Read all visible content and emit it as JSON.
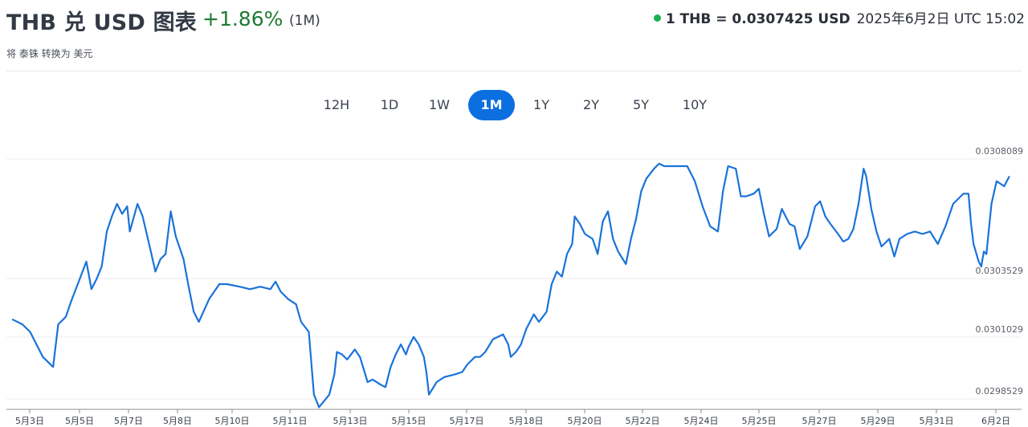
{
  "header": {
    "title": "THB 兑 USD 图表",
    "change": "+1.86%",
    "period": "(1M)",
    "rate": "1 THB = 0.0307425 USD",
    "timestamp": "2025年6月2日 UTC 15:02",
    "subtitle": "将 泰铢 转换为 美元"
  },
  "periods": [
    "12H",
    "1D",
    "1W",
    "1M",
    "1Y",
    "2Y",
    "5Y",
    "10Y"
  ],
  "active_period": "1M",
  "colors": {
    "line": "#1a73d9",
    "active": "#0c6fe0",
    "up": "#1f7a34",
    "live": "#17b152"
  },
  "chart_data": {
    "type": "line",
    "x_tick_labels": [
      "5月3日",
      "5月5日",
      "5月7日",
      "5月8日",
      "5月10日",
      "5月11日",
      "5月13日",
      "5月15日",
      "5月17日",
      "5月18日",
      "5月20日",
      "5月22日",
      "5月24日",
      "5月25日",
      "5月27日",
      "5月29日",
      "5月31日",
      "6月2日"
    ],
    "y_tick_labels": [
      "0.0308089",
      "0.0303529",
      "0.0301029",
      "0.0298529"
    ],
    "ylim": [
      0.0298529,
      0.0308089
    ],
    "series": [
      {
        "points": [
          [
            2.5,
            0.03017
          ],
          [
            2.9,
            0.03015
          ],
          [
            3.2,
            0.03012
          ],
          [
            3.7,
            0.03002
          ],
          [
            4.1,
            0.02998
          ],
          [
            4.3,
            0.03015
          ],
          [
            4.6,
            0.03018
          ],
          [
            4.8,
            0.03024
          ],
          [
            5.1,
            0.03032
          ],
          [
            5.4,
            0.0304
          ],
          [
            5.6,
            0.03029
          ],
          [
            5.8,
            0.03033
          ],
          [
            6.0,
            0.03038
          ],
          [
            6.2,
            0.03052
          ],
          [
            6.4,
            0.03058
          ],
          [
            6.6,
            0.03063
          ],
          [
            6.8,
            0.03059
          ],
          [
            7.0,
            0.03062
          ],
          [
            7.1,
            0.03052
          ],
          [
            7.4,
            0.03063
          ],
          [
            7.6,
            0.03058
          ],
          [
            7.9,
            0.03045
          ],
          [
            8.1,
            0.03036
          ],
          [
            8.3,
            0.03041
          ],
          [
            8.5,
            0.03043
          ],
          [
            8.7,
            0.0306
          ],
          [
            8.9,
            0.0305
          ],
          [
            9.2,
            0.03041
          ],
          [
            9.4,
            0.0303
          ],
          [
            9.6,
            0.0302
          ],
          [
            9.8,
            0.03016
          ],
          [
            10.2,
            0.03025
          ],
          [
            10.6,
            0.03031
          ],
          [
            10.9,
            0.03031
          ],
          [
            11.4,
            0.0303
          ],
          [
            11.8,
            0.03029
          ],
          [
            12.2,
            0.0303
          ],
          [
            12.6,
            0.03029
          ],
          [
            12.8,
            0.03032
          ],
          [
            13.0,
            0.03028
          ],
          [
            13.3,
            0.03025
          ],
          [
            13.6,
            0.03023
          ],
          [
            13.8,
            0.03016
          ],
          [
            14.1,
            0.03012
          ],
          [
            14.3,
            0.02987
          ],
          [
            14.5,
            0.02982
          ],
          [
            14.9,
            0.02987
          ],
          [
            15.1,
            0.02995
          ],
          [
            15.2,
            0.03004
          ],
          [
            15.4,
            0.03003
          ],
          [
            15.6,
            0.03001
          ],
          [
            15.9,
            0.03005
          ],
          [
            16.1,
            0.03002
          ],
          [
            16.4,
            0.02992
          ],
          [
            16.6,
            0.02993
          ],
          [
            16.9,
            0.02991
          ],
          [
            17.1,
            0.0299
          ],
          [
            17.3,
            0.02998
          ],
          [
            17.5,
            0.03003
          ],
          [
            17.7,
            0.03007
          ],
          [
            17.9,
            0.03003
          ],
          [
            18.0,
            0.03006
          ],
          [
            18.2,
            0.0301
          ],
          [
            18.4,
            0.03007
          ],
          [
            18.6,
            0.03002
          ],
          [
            18.7,
            0.02996
          ],
          [
            18.8,
            0.02987
          ],
          [
            19.1,
            0.02992
          ],
          [
            19.4,
            0.02994
          ],
          [
            19.8,
            0.02995
          ],
          [
            20.1,
            0.02996
          ],
          [
            20.3,
            0.02999
          ],
          [
            20.6,
            0.03002
          ],
          [
            20.8,
            0.03002
          ],
          [
            21.0,
            0.03004
          ],
          [
            21.3,
            0.03009
          ],
          [
            21.7,
            0.03011
          ],
          [
            21.9,
            0.03007
          ],
          [
            22.0,
            0.03002
          ],
          [
            22.2,
            0.03004
          ],
          [
            22.4,
            0.03007
          ],
          [
            22.6,
            0.03013
          ],
          [
            22.9,
            0.03019
          ],
          [
            23.1,
            0.03016
          ],
          [
            23.4,
            0.0302
          ],
          [
            23.6,
            0.03031
          ],
          [
            23.8,
            0.03036
          ],
          [
            24.0,
            0.03034
          ],
          [
            24.2,
            0.03043
          ],
          [
            24.4,
            0.03047
          ],
          [
            24.5,
            0.03058
          ],
          [
            24.7,
            0.03055
          ],
          [
            24.9,
            0.03051
          ],
          [
            25.2,
            0.03049
          ],
          [
            25.4,
            0.03043
          ],
          [
            25.6,
            0.03056
          ],
          [
            25.8,
            0.0306
          ],
          [
            26.0,
            0.03049
          ],
          [
            26.2,
            0.03044
          ],
          [
            26.5,
            0.03039
          ],
          [
            26.7,
            0.03049
          ],
          [
            26.9,
            0.03057
          ],
          [
            27.1,
            0.03068
          ],
          [
            27.3,
            0.03073
          ],
          [
            27.6,
            0.03077
          ],
          [
            27.8,
            0.03079
          ],
          [
            28.0,
            0.03078
          ],
          [
            28.4,
            0.03078
          ],
          [
            28.9,
            0.03078
          ],
          [
            29.2,
            0.03072
          ],
          [
            29.5,
            0.03062
          ],
          [
            29.8,
            0.03054
          ],
          [
            30.1,
            0.03052
          ],
          [
            30.3,
            0.03068
          ],
          [
            30.5,
            0.03078
          ],
          [
            30.8,
            0.03077
          ],
          [
            31.0,
            0.03066
          ],
          [
            31.2,
            0.03066
          ],
          [
            31.5,
            0.03067
          ],
          [
            31.7,
            0.03069
          ],
          [
            31.9,
            0.03059
          ],
          [
            32.1,
            0.0305
          ],
          [
            32.4,
            0.03053
          ],
          [
            32.6,
            0.03061
          ],
          [
            32.9,
            0.03055
          ],
          [
            33.1,
            0.03054
          ],
          [
            33.3,
            0.03045
          ],
          [
            33.6,
            0.0305
          ],
          [
            33.9,
            0.03062
          ],
          [
            34.1,
            0.03064
          ],
          [
            34.3,
            0.03058
          ],
          [
            34.5,
            0.03055
          ],
          [
            34.8,
            0.03051
          ],
          [
            35.0,
            0.03048
          ],
          [
            35.2,
            0.03049
          ],
          [
            35.4,
            0.03053
          ],
          [
            35.6,
            0.03063
          ],
          [
            35.8,
            0.03077
          ],
          [
            35.9,
            0.03074
          ],
          [
            36.1,
            0.03061
          ],
          [
            36.3,
            0.03052
          ],
          [
            36.5,
            0.03046
          ],
          [
            36.8,
            0.03049
          ],
          [
            37.0,
            0.03042
          ],
          [
            37.2,
            0.03049
          ],
          [
            37.5,
            0.03051
          ],
          [
            37.8,
            0.03052
          ],
          [
            38.1,
            0.03051
          ],
          [
            38.4,
            0.03052
          ],
          [
            38.7,
            0.03047
          ],
          [
            39.0,
            0.03054
          ],
          [
            39.3,
            0.03063
          ],
          [
            39.7,
            0.03067
          ],
          [
            39.9,
            0.03067
          ],
          [
            40.0,
            0.03055
          ],
          [
            40.1,
            0.03047
          ],
          [
            40.3,
            0.0304
          ],
          [
            40.4,
            0.03038
          ],
          [
            40.5,
            0.03044
          ],
          [
            40.6,
            0.03043
          ],
          [
            40.8,
            0.03063
          ],
          [
            41.0,
            0.03072
          ],
          [
            41.3,
            0.0307
          ],
          [
            41.5,
            0.03074
          ]
        ]
      }
    ],
    "x_range": [
      2.4,
      41.6
    ]
  }
}
